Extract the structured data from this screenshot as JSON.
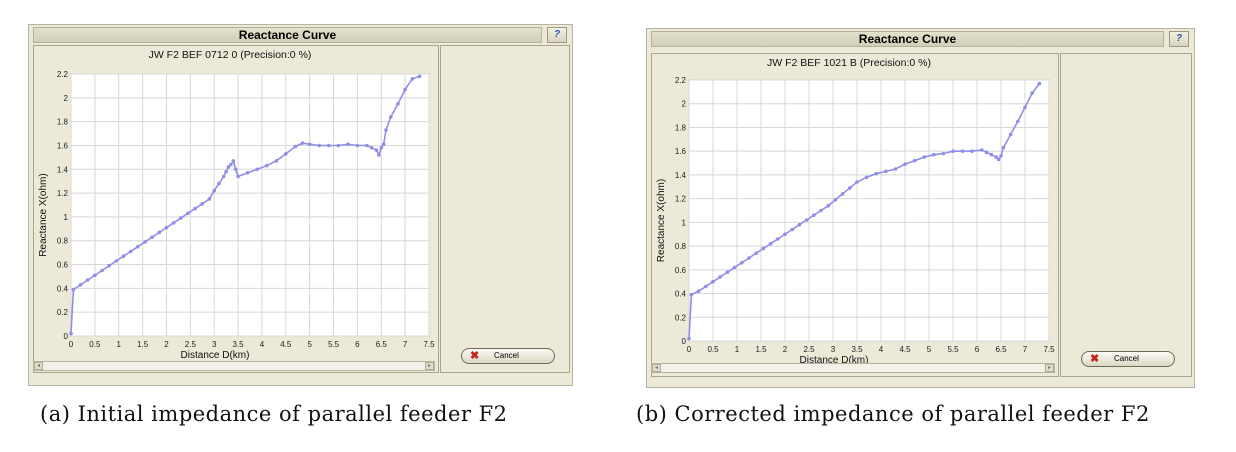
{
  "panels": [
    {
      "title": "Reactance Curve",
      "cancel_label": "Cancel",
      "chart_data": {
        "type": "line",
        "title": "JW F2 BEF 0712 0 (Precision:0 %)",
        "xlabel": "Distance D(km)",
        "ylabel": "Reactance X(ohm)",
        "xlim": [
          0,
          7.5
        ],
        "ylim": [
          0,
          2.2
        ],
        "xticks": [
          "0",
          "0.5",
          "1",
          "1.5",
          "2",
          "2.5",
          "3",
          "3.5",
          "4",
          "4.5",
          "5",
          "5.5",
          "6",
          "6.5",
          "7",
          "7.5"
        ],
        "yticks": [
          "0",
          "0.2",
          "0.4",
          "0.6",
          "0.8",
          "1",
          "1.2",
          "1.4",
          "1.6",
          "1.8",
          "2",
          "2.2"
        ],
        "grid": true,
        "color": "#8f8fe8",
        "x": [
          0,
          0.05,
          0.2,
          0.35,
          0.5,
          0.65,
          0.8,
          0.95,
          1.1,
          1.25,
          1.4,
          1.55,
          1.7,
          1.85,
          2.0,
          2.15,
          2.3,
          2.45,
          2.6,
          2.75,
          2.9,
          3.0,
          3.1,
          3.2,
          3.25,
          3.3,
          3.35,
          3.4,
          3.45,
          3.5,
          3.7,
          3.9,
          4.1,
          4.3,
          4.5,
          4.7,
          4.85,
          5.0,
          5.2,
          5.4,
          5.6,
          5.8,
          6.0,
          6.2,
          6.3,
          6.4,
          6.45,
          6.5,
          6.55,
          6.6,
          6.7,
          6.85,
          7.0,
          7.15,
          7.3
        ],
        "y": [
          0.02,
          0.39,
          0.43,
          0.47,
          0.51,
          0.55,
          0.59,
          0.63,
          0.67,
          0.71,
          0.75,
          0.79,
          0.83,
          0.87,
          0.91,
          0.95,
          0.99,
          1.03,
          1.07,
          1.11,
          1.15,
          1.22,
          1.28,
          1.34,
          1.38,
          1.42,
          1.44,
          1.47,
          1.4,
          1.34,
          1.37,
          1.4,
          1.43,
          1.47,
          1.53,
          1.59,
          1.62,
          1.61,
          1.6,
          1.6,
          1.6,
          1.61,
          1.6,
          1.6,
          1.58,
          1.56,
          1.52,
          1.58,
          1.61,
          1.73,
          1.84,
          1.95,
          2.07,
          2.16,
          2.18
        ]
      }
    },
    {
      "title": "Reactance Curve",
      "cancel_label": "Cancel",
      "chart_data": {
        "type": "line",
        "title": "JW F2 BEF 1021 B (Precision:0 %)",
        "xlabel": "Distance D(km)",
        "ylabel": "Reactance X(ohm)",
        "xlim": [
          0,
          7.5
        ],
        "ylim": [
          0,
          2.2
        ],
        "xticks": [
          "0",
          "0.5",
          "1",
          "1.5",
          "2",
          "2.5",
          "3",
          "3.5",
          "4",
          "4.5",
          "5",
          "5.5",
          "6",
          "6.5",
          "7",
          "7.5"
        ],
        "yticks": [
          "0",
          "0.2",
          "0.4",
          "0.6",
          "0.8",
          "1",
          "1.2",
          "1.4",
          "1.6",
          "1.8",
          "2",
          "2.2"
        ],
        "grid": true,
        "color": "#8f8fe8",
        "x": [
          0,
          0.05,
          0.2,
          0.35,
          0.5,
          0.65,
          0.8,
          0.95,
          1.1,
          1.25,
          1.4,
          1.55,
          1.7,
          1.85,
          2.0,
          2.15,
          2.3,
          2.45,
          2.6,
          2.75,
          2.9,
          3.05,
          3.2,
          3.35,
          3.5,
          3.7,
          3.9,
          4.1,
          4.3,
          4.5,
          4.7,
          4.9,
          5.1,
          5.3,
          5.5,
          5.7,
          5.9,
          6.1,
          6.2,
          6.3,
          6.4,
          6.45,
          6.5,
          6.55,
          6.7,
          6.85,
          7.0,
          7.15,
          7.3
        ],
        "y": [
          0.02,
          0.39,
          0.42,
          0.46,
          0.5,
          0.54,
          0.58,
          0.62,
          0.66,
          0.7,
          0.74,
          0.78,
          0.82,
          0.86,
          0.9,
          0.94,
          0.98,
          1.02,
          1.06,
          1.1,
          1.14,
          1.19,
          1.24,
          1.29,
          1.34,
          1.38,
          1.41,
          1.43,
          1.45,
          1.49,
          1.52,
          1.55,
          1.57,
          1.58,
          1.6,
          1.6,
          1.6,
          1.61,
          1.59,
          1.57,
          1.55,
          1.53,
          1.56,
          1.63,
          1.74,
          1.85,
          1.97,
          2.09,
          2.17
        ]
      }
    }
  ],
  "captions": [
    "(a) Initial impedance of parallel feeder F2",
    "(b) Corrected impedance of parallel feeder F2"
  ]
}
